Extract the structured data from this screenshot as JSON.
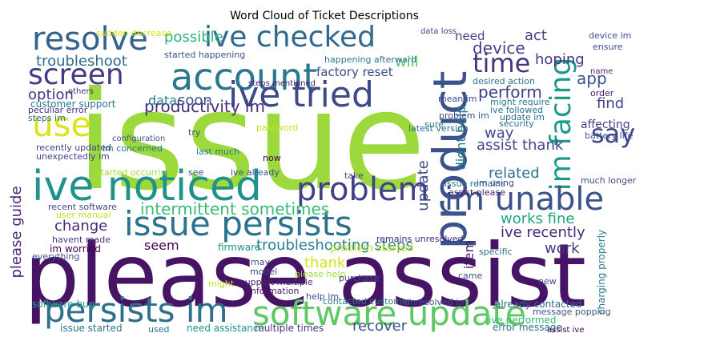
{
  "title": "Word Cloud of Ticket Descriptions",
  "words": [
    {
      "text": "issue",
      "color": "#9bd93c"
    },
    {
      "text": "please assist",
      "color": "#471365"
    },
    {
      "text": "account",
      "color": "#2a788e"
    },
    {
      "text": "resolve",
      "color": "#33638d"
    },
    {
      "text": "ive checked",
      "color": "#31688e"
    },
    {
      "text": "ive tried",
      "color": "#3e4989"
    },
    {
      "text": "product",
      "color": "#3b528b"
    },
    {
      "text": "im facing",
      "color": "#1f9a8a"
    },
    {
      "text": "time",
      "color": "#453781"
    },
    {
      "text": "screen",
      "color": "#443a83"
    },
    {
      "text": "use",
      "color": "#dde318"
    },
    {
      "text": "ive noticed",
      "color": "#21918c"
    },
    {
      "text": "problem",
      "color": "#424086"
    },
    {
      "text": "im unable",
      "color": "#3b528b"
    },
    {
      "text": "issue persists",
      "color": "#2c728e"
    },
    {
      "text": "say",
      "color": "#404688"
    },
    {
      "text": "persists im",
      "color": "#2d708e"
    },
    {
      "text": "software update",
      "color": "#5ec962"
    },
    {
      "text": "intermittent sometimes",
      "color": "#3aba76"
    },
    {
      "text": "troubleshoot",
      "color": "#2f6b8e"
    },
    {
      "text": "productivity im",
      "color": "#472d7b"
    },
    {
      "text": "data",
      "color": "#297b8e"
    },
    {
      "text": "soon",
      "color": "#3b528b"
    },
    {
      "text": "possible",
      "color": "#2db27d"
    },
    {
      "text": "option",
      "color": "#453781"
    },
    {
      "text": "customer support",
      "color": "#2a788e"
    },
    {
      "text": "troubleshooting steps",
      "color": "#25838e"
    },
    {
      "text": "change",
      "color": "#482878"
    },
    {
      "text": "please guide",
      "color": "#482677"
    },
    {
      "text": "factory reset",
      "color": "#3e4989"
    },
    {
      "text": "perform",
      "color": "#424086"
    },
    {
      "text": "device",
      "color": "#433e85"
    },
    {
      "text": "hoping",
      "color": "#46337f"
    },
    {
      "text": "act",
      "color": "#424186"
    },
    {
      "text": "need",
      "color": "#414487"
    },
    {
      "text": "will",
      "color": "#5ec962"
    },
    {
      "text": "app",
      "color": "#3b528b"
    },
    {
      "text": "find",
      "color": "#404688"
    },
    {
      "text": "assist thank",
      "color": "#404688"
    },
    {
      "text": "way",
      "color": "#3e4989"
    },
    {
      "text": "related",
      "color": "#2c728e"
    },
    {
      "text": "works fine",
      "color": "#20a486"
    },
    {
      "text": "ive recently",
      "color": "#482878"
    },
    {
      "text": "work",
      "color": "#443983"
    },
    {
      "text": "update",
      "color": "#3e4989"
    },
    {
      "text": "didnt help",
      "color": "#287c8e"
    },
    {
      "text": "item",
      "color": "#481b6d"
    },
    {
      "text": "seem",
      "color": "#440154"
    },
    {
      "text": "thank",
      "color": "#d2e21b"
    },
    {
      "text": "please help",
      "color": "#9fda3a"
    },
    {
      "text": "firmware",
      "color": "#21918c"
    },
    {
      "text": "problem started",
      "color": "#bddf26"
    },
    {
      "text": "recover",
      "color": "#3b528b"
    },
    {
      "text": "error message",
      "color": "#2c728e"
    },
    {
      "text": "ive performed",
      "color": "#35b779"
    },
    {
      "text": "issue started",
      "color": "#2c728e"
    },
    {
      "text": "need assistance",
      "color": "#21918c"
    },
    {
      "text": "multiple times",
      "color": "#46337f"
    },
    {
      "text": "software bug",
      "color": "#1f9e89"
    },
    {
      "text": "already contacted",
      "color": "#31688e"
    },
    {
      "text": "contacted customer",
      "color": "#2a788e"
    },
    {
      "text": "support multiple",
      "color": "#482878"
    },
    {
      "text": "information",
      "color": "#481a6c"
    },
    {
      "text": "recent software",
      "color": "#3e4989"
    },
    {
      "text": "user manual",
      "color": "#c0df25"
    },
    {
      "text": "havent made",
      "color": "#443983"
    },
    {
      "text": "im worried",
      "color": "#440154"
    },
    {
      "text": "everything",
      "color": "#3b528b"
    },
    {
      "text": "started occurring",
      "color": "#a5db36"
    },
    {
      "text": "recently updated",
      "color": "#414487"
    },
    {
      "text": "unexpectedly im",
      "color": "#414487"
    },
    {
      "text": "im concerned",
      "color": "#2c728e"
    },
    {
      "text": "last much",
      "color": "#2c728e"
    },
    {
      "text": "configuration",
      "color": "#3b528b"
    },
    {
      "text": "password",
      "color": "#c8e020"
    },
    {
      "text": "ive already",
      "color": "#3b528b"
    },
    {
      "text": "see",
      "color": "#3b528b"
    },
    {
      "text": "take",
      "color": "#424086"
    },
    {
      "text": "remains unresolved",
      "color": "#482878"
    },
    {
      "text": "issue remains",
      "color": "#2c728e"
    },
    {
      "text": "assist please",
      "color": "#481f70"
    },
    {
      "text": "much longer",
      "color": "#3e4989"
    },
    {
      "text": "charging properly",
      "color": "#287d8e"
    },
    {
      "text": "affecting",
      "color": "#424086"
    },
    {
      "text": "battery life",
      "color": "#3b528b"
    },
    {
      "text": "security",
      "color": "#2c728e"
    },
    {
      "text": "latest version",
      "color": "#31688e"
    },
    {
      "text": "mean im",
      "color": "#3e4989"
    },
    {
      "text": "problem im",
      "color": "#3b528b"
    },
    {
      "text": "update im",
      "color": "#2c728e"
    },
    {
      "text": "ive followed",
      "color": "#2c728e"
    },
    {
      "text": "might require",
      "color": "#2a788e"
    },
    {
      "text": "desired action",
      "color": "#2c728e"
    },
    {
      "text": "ensure",
      "color": "#3b528b"
    },
    {
      "text": "device im",
      "color": "#3b528b"
    },
    {
      "text": "order",
      "color": "#481b6d"
    },
    {
      "text": "name",
      "color": "#482878"
    },
    {
      "text": "data loss",
      "color": "#3e4989"
    },
    {
      "text": "happening afterward",
      "color": "#2a788e"
    },
    {
      "text": "started happening",
      "color": "#3b528b"
    },
    {
      "text": "steps mentioned",
      "color": "#481f70"
    },
    {
      "text": "sudden decrease",
      "color": "#d5e21a"
    },
    {
      "text": "peculiar error",
      "color": "#46327e"
    },
    {
      "text": "steps im",
      "color": "#31688e"
    },
    {
      "text": "others",
      "color": "#482878"
    },
    {
      "text": "try",
      "color": "#3e4989"
    },
    {
      "text": "now",
      "color": "#440154"
    },
    {
      "text": "may",
      "color": "#3b528b"
    },
    {
      "text": "model",
      "color": "#3e4989"
    },
    {
      "text": "might",
      "color": "#c2df23"
    },
    {
      "text": "used",
      "color": "#2c728e"
    },
    {
      "text": "purchase",
      "color": "#3e4989"
    },
    {
      "text": "came",
      "color": "#3b528b"
    },
    {
      "text": "new",
      "color": "#3e4989"
    },
    {
      "text": "specific",
      "color": "#2c728e"
    },
    {
      "text": "sure",
      "color": "#2c728e"
    },
    {
      "text": "im using",
      "color": "#3b528b"
    },
    {
      "text": "help im",
      "color": "#3e4989"
    },
    {
      "text": "message popping",
      "color": "#3b528b"
    },
    {
      "text": "assist ive",
      "color": "#440154"
    },
    {
      "text": "unresolved im",
      "color": "#3b528b"
    }
  ]
}
